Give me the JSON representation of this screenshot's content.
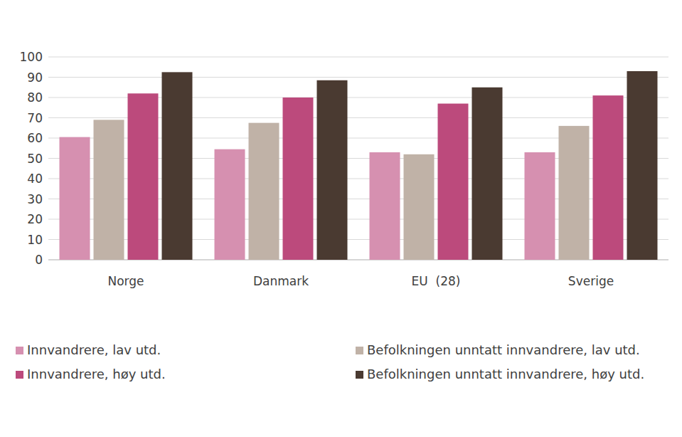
{
  "chart_data": {
    "type": "bar",
    "categories": [
      "Norge",
      "Danmark",
      "EU  (28)",
      "Sverige"
    ],
    "series": [
      {
        "name": "Innvandrere, lav utd.",
        "color": "#d690b0",
        "values": [
          60.5,
          54.5,
          53,
          53
        ]
      },
      {
        "name": "Befolkningen unntatt innvandrere, lav utd.",
        "color": "#c0b2a7",
        "values": [
          69,
          67.5,
          52,
          66
        ]
      },
      {
        "name": "Innvandrere, høy utd.",
        "color": "#bc4a7c",
        "values": [
          82,
          80,
          77,
          81
        ]
      },
      {
        "name": "Befolkningen unntatt innvandrere, høy utd.",
        "color": "#4a3a31",
        "values": [
          92.5,
          88.5,
          85,
          93
        ]
      }
    ],
    "ylim": [
      0,
      100
    ],
    "yticks": [
      0,
      10,
      20,
      30,
      40,
      50,
      60,
      70,
      80,
      90,
      100
    ],
    "grid": true,
    "legend": "bottom"
  }
}
